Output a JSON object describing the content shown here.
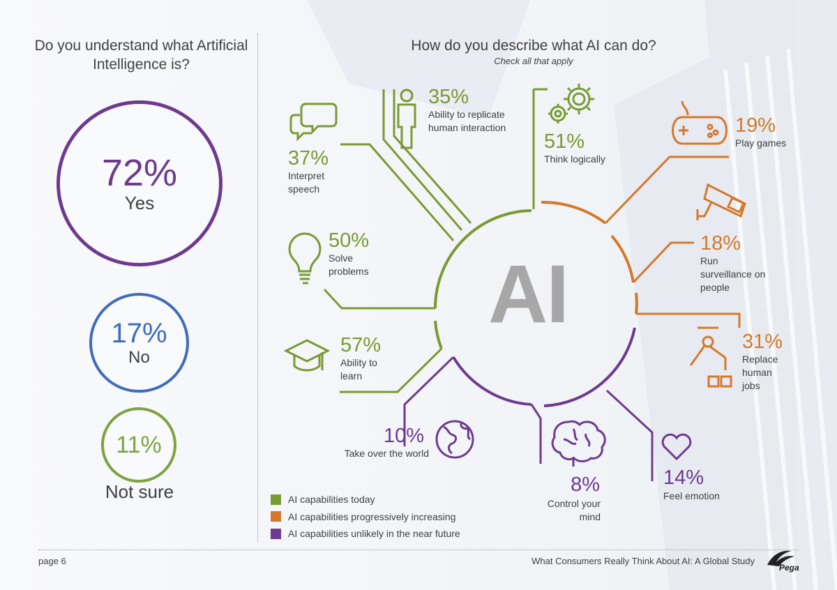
{
  "left": {
    "question": "Do you understand what Artificial Intelligence is?",
    "answers": [
      {
        "pct": "72%",
        "label": "Yes"
      },
      {
        "pct": "17%",
        "label": "No"
      },
      {
        "pct": "11%",
        "label": "Not sure"
      }
    ]
  },
  "right": {
    "question": "How do you describe what AI can do?",
    "subtitle": "Check all that apply",
    "center_label": "AI",
    "items": [
      {
        "pct": "37%",
        "label": "Interpret speech",
        "icon": "speech-bubbles-icon",
        "group": "today"
      },
      {
        "pct": "35%",
        "label": "Ability to replicate human interaction",
        "icon": "person-icon",
        "group": "today"
      },
      {
        "pct": "51%",
        "label": "Think logically",
        "icon": "gears-icon",
        "group": "today"
      },
      {
        "pct": "50%",
        "label": "Solve problems",
        "icon": "lightbulb-icon",
        "group": "today"
      },
      {
        "pct": "57%",
        "label": "Ability to learn",
        "icon": "graduation-cap-icon",
        "group": "today"
      },
      {
        "pct": "19%",
        "label": "Play games",
        "icon": "gamepad-icon",
        "group": "increasing"
      },
      {
        "pct": "18%",
        "label": "Run surveillance on people",
        "icon": "cctv-camera-icon",
        "group": "increasing"
      },
      {
        "pct": "31%",
        "label": "Replace human jobs",
        "icon": "robot-arm-icon",
        "group": "increasing"
      },
      {
        "pct": "10%",
        "label": "Take over the world",
        "icon": "globe-icon",
        "group": "unlikely"
      },
      {
        "pct": "8%",
        "label": "Control your mind",
        "icon": "brain-icon",
        "group": "unlikely"
      },
      {
        "pct": "14%",
        "label": "Feel emotion",
        "icon": "heart-icon",
        "group": "unlikely"
      }
    ],
    "legend": [
      {
        "label": "AI capabilities today",
        "color": "#7a9a33"
      },
      {
        "label": "AI capabilities progressively increasing",
        "color": "#d4782b"
      },
      {
        "label": "AI capabilities unlikely in the near future",
        "color": "#6e3a8f"
      }
    ]
  },
  "footer": {
    "page": "page 6",
    "title": "What Consumers Really Think About AI: A Global Study",
    "brand": "Pega"
  },
  "colors": {
    "green": "#7a9a33",
    "orange": "#d4782b",
    "purple": "#6e3a8f",
    "blue": "#3f6cba"
  }
}
